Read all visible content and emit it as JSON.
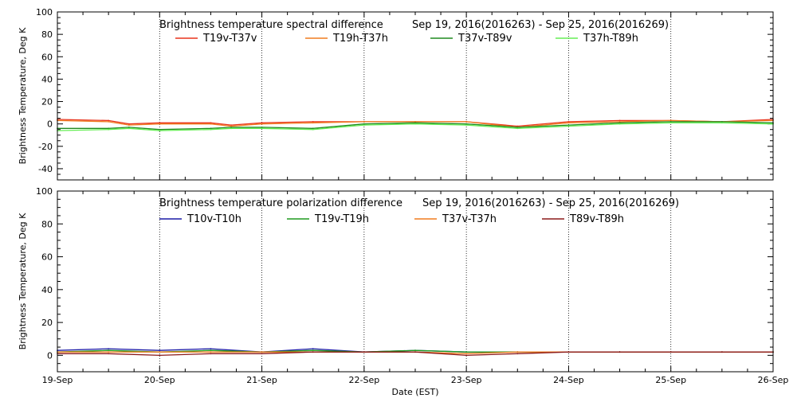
{
  "chart_data": [
    {
      "type": "line",
      "title": "Brightness temperature spectral difference",
      "date_range": "Sep 19, 2016(2016263) - Sep 25, 2016(2016269)",
      "ylabel": "Brightness Temperature, Deg K",
      "xlabel": "",
      "ylim": [
        -50,
        100
      ],
      "yticks": [
        -40,
        -20,
        0,
        20,
        40,
        60,
        80,
        100
      ],
      "xlim": [
        0,
        7
      ],
      "xticks": [
        0,
        1,
        2,
        3,
        4,
        5,
        6,
        7
      ],
      "xtick_labels": [],
      "grid": true,
      "legend_position": "top",
      "series": [
        {
          "name": "T19v-T37v",
          "color": "#e8341c",
          "x": [
            0,
            0.5,
            0.7,
            1.0,
            1.5,
            1.7,
            2.0,
            2.5,
            3.0,
            3.5,
            4.0,
            4.5,
            5.0,
            5.5,
            6.0,
            6.5,
            7.0
          ],
          "y": [
            4,
            3,
            0,
            1,
            1,
            -1,
            1,
            2,
            2,
            2,
            2,
            -2,
            2,
            3,
            3,
            2,
            4
          ]
        },
        {
          "name": "T19h-T37h",
          "color": "#f07b1f",
          "x": [
            0,
            0.5,
            0.7,
            1.0,
            1.5,
            1.7,
            2.0,
            2.5,
            3.0,
            3.5,
            4.0,
            4.5,
            5.0,
            5.5,
            6.0,
            6.5,
            7.0
          ],
          "y": [
            3,
            2,
            -1,
            0,
            0,
            -2,
            0,
            1,
            2,
            2,
            2,
            -3,
            1,
            2,
            3,
            2,
            3
          ]
        },
        {
          "name": "T37v-T89v",
          "color": "#1f8a1f",
          "x": [
            0,
            0.5,
            0.7,
            1.0,
            1.5,
            1.7,
            2.0,
            2.5,
            3.0,
            3.5,
            4.0,
            4.5,
            5.0,
            5.5,
            6.0,
            6.5,
            7.0
          ],
          "y": [
            -4,
            -4,
            -3,
            -5,
            -4,
            -3,
            -3,
            -4,
            0,
            1,
            0,
            -3,
            -1,
            1,
            2,
            2,
            1
          ]
        },
        {
          "name": "T37h-T89h",
          "color": "#66ee55",
          "x": [
            0,
            0.5,
            0.7,
            1.0,
            1.5,
            1.7,
            2.0,
            2.5,
            3.0,
            3.5,
            4.0,
            4.5,
            5.0,
            5.5,
            6.0,
            6.5,
            7.0
          ],
          "y": [
            -6,
            -5,
            -4,
            -6,
            -5,
            -4,
            -4,
            -5,
            -1,
            0,
            -1,
            -4,
            -2,
            0,
            1,
            1,
            0
          ]
        }
      ]
    },
    {
      "type": "line",
      "title": "Brightness temperature polarization difference",
      "date_range": "Sep 19, 2016(2016263) - Sep 25, 2016(2016269)",
      "ylabel": "Brightness Temperature, Deg K",
      "xlabel": "Date (EST)",
      "ylim": [
        -10,
        100
      ],
      "yticks": [
        0,
        20,
        40,
        60,
        80,
        100
      ],
      "xlim": [
        0,
        7
      ],
      "xticks": [
        0,
        1,
        2,
        3,
        4,
        5,
        6,
        7
      ],
      "xtick_labels": [
        "19-Sep",
        "20-Sep",
        "21-Sep",
        "22-Sep",
        "23-Sep",
        "24-Sep",
        "25-Sep",
        "26-Sep"
      ],
      "grid": true,
      "legend_position": "top",
      "series": [
        {
          "name": "T10v-T10h",
          "color": "#1a1aa6",
          "x": [
            0,
            0.5,
            1.0,
            1.5,
            2.0,
            2.5,
            3.0,
            3.5,
            4.0,
            4.5,
            5.0,
            5.5,
            6.0,
            6.5,
            7.0
          ],
          "y": [
            3,
            4,
            3,
            4,
            2,
            4,
            2,
            3,
            2,
            2,
            2,
            2,
            2,
            2,
            2
          ]
        },
        {
          "name": "T19v-T19h",
          "color": "#1f9a1f",
          "x": [
            0,
            0.5,
            1.0,
            1.5,
            2.0,
            2.5,
            3.0,
            3.5,
            4.0,
            4.5,
            5.0,
            5.5,
            6.0,
            6.5,
            7.0
          ],
          "y": [
            2,
            3,
            2,
            3,
            2,
            3,
            2,
            3,
            2,
            2,
            2,
            2,
            2,
            2,
            2
          ]
        },
        {
          "name": "T37v-T37h",
          "color": "#f07b1f",
          "x": [
            0,
            0.5,
            1.0,
            1.5,
            2.0,
            2.5,
            3.0,
            3.5,
            4.0,
            4.5,
            5.0,
            5.5,
            6.0,
            6.5,
            7.0
          ],
          "y": [
            2,
            2,
            2,
            2,
            2,
            2,
            2,
            2,
            1,
            2,
            2,
            2,
            2,
            2,
            2
          ]
        },
        {
          "name": "T89v-T89h",
          "color": "#8b1a1a",
          "x": [
            0,
            0.5,
            1.0,
            1.5,
            2.0,
            2.5,
            3.0,
            3.5,
            4.0,
            4.5,
            5.0,
            5.5,
            6.0,
            6.5,
            7.0
          ],
          "y": [
            1,
            1,
            0,
            1,
            1,
            2,
            2,
            2,
            0,
            1,
            2,
            2,
            2,
            2,
            2
          ]
        }
      ]
    }
  ]
}
